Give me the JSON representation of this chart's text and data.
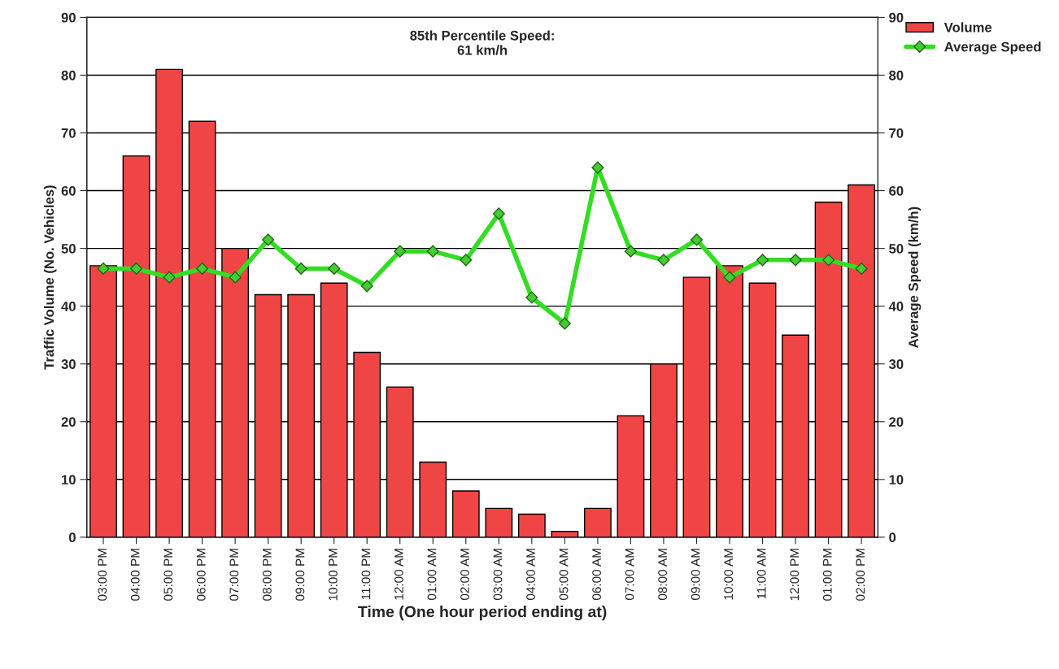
{
  "chart_data": {
    "type": "bar",
    "xlabel": "Time (One hour period ending at)",
    "ylabel": "Traffic Volume (No. Vehicles)",
    "y2label": "Average Speed (km/h)",
    "categories": [
      "03:00 PM",
      "04:00 PM",
      "05:00 PM",
      "06:00 PM",
      "07:00 PM",
      "08:00 PM",
      "09:00 PM",
      "10:00 PM",
      "11:00 PM",
      "12:00 AM",
      "01:00 AM",
      "02:00 AM",
      "03:00 AM",
      "04:00 AM",
      "05:00 AM",
      "06:00 AM",
      "07:00 AM",
      "08:00 AM",
      "09:00 AM",
      "10:00 AM",
      "11:00 AM",
      "12:00 PM",
      "01:00 PM",
      "02:00 PM"
    ],
    "series": [
      {
        "name": "Volume",
        "color": "#f04545",
        "values": [
          47,
          66,
          81,
          72,
          50,
          42,
          42,
          44,
          32,
          26,
          13,
          8,
          5,
          4,
          1,
          5,
          21,
          30,
          45,
          47,
          44,
          35,
          58,
          61
        ]
      },
      {
        "name": "Average Speed",
        "type": "line",
        "axis": "y2",
        "color": "#33dd22",
        "marker": "diamond",
        "values": [
          46.5,
          46.5,
          45,
          46.5,
          45,
          51.5,
          46.5,
          46.5,
          43.5,
          49.5,
          49.5,
          48,
          56,
          41.5,
          37,
          64,
          49.5,
          48,
          51.5,
          45,
          48,
          48,
          48,
          46.5
        ]
      }
    ],
    "ylim": [
      0,
      90
    ],
    "yticks": [
      0,
      10,
      20,
      30,
      40,
      50,
      60,
      70,
      80,
      90
    ],
    "y2lim": [
      0,
      90
    ],
    "y2ticks": [
      0,
      10,
      20,
      30,
      40,
      50,
      60,
      70,
      80,
      90
    ],
    "grid": "y",
    "legend": "top right",
    "annotations": [
      {
        "text": "85th Percentile Speed:\n61 km/h"
      }
    ]
  }
}
